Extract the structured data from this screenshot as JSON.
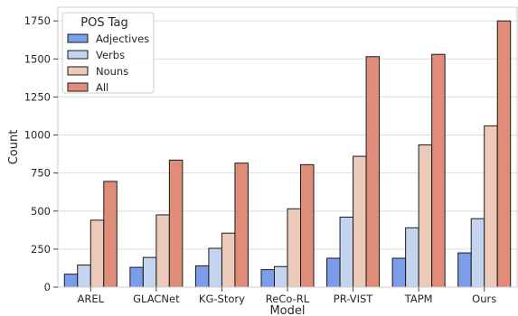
{
  "chart_data": {
    "type": "bar",
    "xlabel": "Model",
    "ylabel": "Count",
    "ylim": [
      0,
      1840
    ],
    "yticks": [
      0,
      250,
      500,
      750,
      1000,
      1250,
      1500,
      1750
    ],
    "ytick_labels": [
      "0",
      "250",
      "500",
      "750",
      "1000",
      "1250",
      "1500",
      "1750"
    ],
    "grid": "horizontal",
    "legend": {
      "title": "POS Tag",
      "placement": "top-left"
    },
    "categories": [
      "AREL",
      "GLACNet",
      "KG-Story",
      "ReCo-RL",
      "PR-VIST",
      "TAPM",
      "Ours"
    ],
    "series": [
      {
        "name": "Adjectives",
        "color": "#7c9de9",
        "values": [
          85,
          130,
          140,
          115,
          190,
          190,
          225
        ]
      },
      {
        "name": "Verbs",
        "color": "#c4d4ef",
        "values": [
          145,
          195,
          255,
          135,
          460,
          390,
          450
        ]
      },
      {
        "name": "Nouns",
        "color": "#eccab9",
        "values": [
          440,
          475,
          355,
          515,
          860,
          935,
          1060
        ]
      },
      {
        "name": "All",
        "color": "#df8d78",
        "values": [
          695,
          835,
          815,
          805,
          1515,
          1530,
          1750
        ]
      }
    ]
  }
}
